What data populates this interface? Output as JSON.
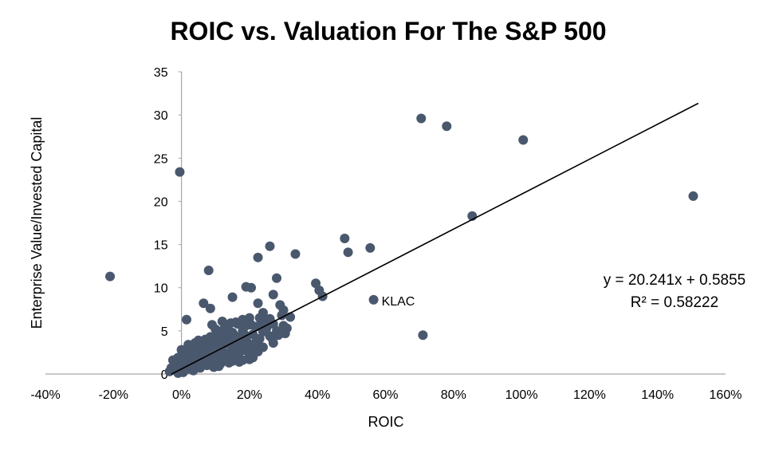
{
  "chart_data": {
    "type": "scatter",
    "title": "ROIC vs. Valuation For The S&P 500",
    "xlabel": "ROIC",
    "ylabel": "Enterprise Value/Invested Capital",
    "xlim": [
      -0.4,
      1.6
    ],
    "ylim": [
      0,
      35
    ],
    "x_tick_labels": [
      "-40%",
      "-20%",
      "0%",
      "20%",
      "40%",
      "60%",
      "80%",
      "100%",
      "120%",
      "140%",
      "160%"
    ],
    "y_tick_labels": [
      "0",
      "5",
      "10",
      "15",
      "20",
      "25",
      "30",
      "35"
    ],
    "grid": false,
    "point_color": "#4a586e",
    "line_color": "#000000",
    "trendline": {
      "slope": 20.241,
      "intercept": 0.5855,
      "x_range": [
        -0.03,
        1.52
      ],
      "equation": "y = 20.241x + 0.5855",
      "r2": "R² = 0.58222"
    },
    "labeled_point": {
      "label": "KLAC",
      "x": 0.565,
      "y": 8.6
    },
    "points": [
      {
        "x": -0.21,
        "y": 11.3
      },
      {
        "x": -0.005,
        "y": 23.4
      },
      {
        "x": 0.015,
        "y": 6.3
      },
      {
        "x": 0.08,
        "y": 12.0
      },
      {
        "x": 0.065,
        "y": 8.2
      },
      {
        "x": 0.085,
        "y": 7.6
      },
      {
        "x": 0.15,
        "y": 8.9
      },
      {
        "x": 0.19,
        "y": 10.1
      },
      {
        "x": 0.205,
        "y": 10.0
      },
      {
        "x": 0.225,
        "y": 13.5
      },
      {
        "x": 0.26,
        "y": 14.8
      },
      {
        "x": 0.27,
        "y": 9.2
      },
      {
        "x": 0.28,
        "y": 11.1
      },
      {
        "x": 0.335,
        "y": 13.9
      },
      {
        "x": 0.395,
        "y": 10.5
      },
      {
        "x": 0.405,
        "y": 9.7
      },
      {
        "x": 0.415,
        "y": 9.0
      },
      {
        "x": 0.48,
        "y": 15.7
      },
      {
        "x": 0.49,
        "y": 14.1
      },
      {
        "x": 0.555,
        "y": 14.6
      },
      {
        "x": 0.565,
        "y": 8.6
      },
      {
        "x": 0.705,
        "y": 29.6
      },
      {
        "x": 0.71,
        "y": 4.5
      },
      {
        "x": 0.78,
        "y": 28.7
      },
      {
        "x": 0.855,
        "y": 18.3
      },
      {
        "x": 1.005,
        "y": 27.1
      },
      {
        "x": 1.505,
        "y": 20.6
      },
      {
        "x": 0.225,
        "y": 8.2
      },
      {
        "x": 0.23,
        "y": 6.5
      },
      {
        "x": 0.24,
        "y": 7.1
      },
      {
        "x": 0.25,
        "y": 6.2
      },
      {
        "x": 0.29,
        "y": 8.0
      },
      {
        "x": 0.3,
        "y": 7.4
      },
      {
        "x": 0.295,
        "y": 6.8
      },
      {
        "x": 0.31,
        "y": 5.3
      },
      {
        "x": 0.32,
        "y": 6.6
      },
      {
        "x": 0.305,
        "y": 4.7
      },
      {
        "x": 0.27,
        "y": 3.6
      },
      {
        "x": 0.265,
        "y": 4.2
      },
      {
        "x": 0.2,
        "y": 6.5
      },
      {
        "x": 0.19,
        "y": 5.6
      },
      {
        "x": 0.165,
        "y": 5.8
      },
      {
        "x": 0.145,
        "y": 5.9
      },
      {
        "x": 0.12,
        "y": 6.1
      },
      {
        "x": 0.1,
        "y": 5.2
      },
      {
        "x": 0.085,
        "y": 4.3
      },
      {
        "x": 0.07,
        "y": 4.0
      },
      {
        "x": 0.05,
        "y": 3.9
      },
      {
        "x": 0.035,
        "y": 3.1
      },
      {
        "x": 0.02,
        "y": 2.6
      },
      {
        "x": 0.01,
        "y": 2.2
      },
      {
        "x": -0.01,
        "y": 1.9
      },
      {
        "x": -0.02,
        "y": 1.1
      },
      {
        "x": -0.03,
        "y": 0.7
      },
      {
        "x": -0.035,
        "y": 0.3
      },
      {
        "x": -0.015,
        "y": 0.4
      },
      {
        "x": 0.0,
        "y": 0.9
      },
      {
        "x": 0.005,
        "y": 1.5
      },
      {
        "x": 0.02,
        "y": 0.6
      },
      {
        "x": 0.03,
        "y": 1.3
      },
      {
        "x": 0.04,
        "y": 0.8
      },
      {
        "x": 0.05,
        "y": 1.8
      },
      {
        "x": 0.06,
        "y": 1.2
      },
      {
        "x": 0.06,
        "y": 2.4
      },
      {
        "x": 0.07,
        "y": 1.6
      },
      {
        "x": 0.08,
        "y": 2.9
      },
      {
        "x": 0.09,
        "y": 1.4
      },
      {
        "x": 0.09,
        "y": 2.1
      },
      {
        "x": 0.1,
        "y": 3.3
      },
      {
        "x": 0.1,
        "y": 1.0
      },
      {
        "x": 0.11,
        "y": 2.6
      },
      {
        "x": 0.11,
        "y": 3.9
      },
      {
        "x": 0.12,
        "y": 1.7
      },
      {
        "x": 0.12,
        "y": 3.0
      },
      {
        "x": 0.13,
        "y": 2.2
      },
      {
        "x": 0.13,
        "y": 4.4
      },
      {
        "x": 0.14,
        "y": 3.5
      },
      {
        "x": 0.14,
        "y": 1.3
      },
      {
        "x": 0.15,
        "y": 2.8
      },
      {
        "x": 0.15,
        "y": 4.8
      },
      {
        "x": 0.16,
        "y": 2.0
      },
      {
        "x": 0.16,
        "y": 3.7
      },
      {
        "x": 0.17,
        "y": 4.2
      },
      {
        "x": 0.17,
        "y": 2.5
      },
      {
        "x": 0.18,
        "y": 3.2
      },
      {
        "x": 0.18,
        "y": 1.6
      },
      {
        "x": 0.18,
        "y": 5.0
      },
      {
        "x": 0.19,
        "y": 2.7
      },
      {
        "x": 0.19,
        "y": 4.0
      },
      {
        "x": 0.2,
        "y": 3.4
      },
      {
        "x": 0.2,
        "y": 2.1
      },
      {
        "x": 0.21,
        "y": 4.6
      },
      {
        "x": 0.21,
        "y": 2.9
      },
      {
        "x": 0.22,
        "y": 3.8
      },
      {
        "x": 0.22,
        "y": 5.5
      },
      {
        "x": 0.23,
        "y": 4.1
      },
      {
        "x": 0.24,
        "y": 4.9
      },
      {
        "x": 0.24,
        "y": 3.1
      },
      {
        "x": 0.25,
        "y": 5.3
      },
      {
        "x": 0.26,
        "y": 4.4
      },
      {
        "x": 0.28,
        "y": 5.0
      },
      {
        "x": 0.27,
        "y": 5.8
      },
      {
        "x": 0.2,
        "y": 1.7
      },
      {
        "x": 0.21,
        "y": 1.9
      },
      {
        "x": 0.17,
        "y": 1.4
      },
      {
        "x": 0.14,
        "y": 2.4
      },
      {
        "x": 0.07,
        "y": 3.4
      },
      {
        "x": 0.045,
        "y": 2.7
      },
      {
        "x": 0.025,
        "y": 1.9
      },
      {
        "x": 0.015,
        "y": 0.9
      },
      {
        "x": 0.035,
        "y": 0.4
      },
      {
        "x": 0.055,
        "y": 0.7
      },
      {
        "x": 0.075,
        "y": 1.0
      },
      {
        "x": 0.095,
        "y": 0.8
      },
      {
        "x": 0.115,
        "y": 1.2
      },
      {
        "x": 0.125,
        "y": 5.2
      },
      {
        "x": 0.135,
        "y": 5.6
      },
      {
        "x": 0.155,
        "y": 4.5
      },
      {
        "x": 0.165,
        "y": 3.0
      },
      {
        "x": 0.175,
        "y": 5.9
      },
      {
        "x": 0.185,
        "y": 4.6
      },
      {
        "x": 0.195,
        "y": 3.6
      },
      {
        "x": 0.205,
        "y": 5.7
      },
      {
        "x": 0.215,
        "y": 3.3
      },
      {
        "x": 0.225,
        "y": 2.6
      },
      {
        "x": 0.235,
        "y": 5.9
      },
      {
        "x": 0.045,
        "y": 1.4
      },
      {
        "x": 0.065,
        "y": 2.0
      },
      {
        "x": 0.085,
        "y": 2.4
      },
      {
        "x": 0.105,
        "y": 2.0
      },
      {
        "x": 0.125,
        "y": 3.6
      },
      {
        "x": 0.145,
        "y": 4.0
      },
      {
        "x": 0.005,
        "y": 0.2
      },
      {
        "x": -0.025,
        "y": 1.6
      },
      {
        "x": 0.0,
        "y": 2.8
      },
      {
        "x": 0.03,
        "y": 2.2
      },
      {
        "x": 0.06,
        "y": 3.0
      },
      {
        "x": 0.09,
        "y": 3.8
      },
      {
        "x": 0.11,
        "y": 4.9
      },
      {
        "x": 0.13,
        "y": 1.9
      },
      {
        "x": 0.15,
        "y": 1.5
      },
      {
        "x": 0.09,
        "y": 5.7
      },
      {
        "x": 0.105,
        "y": 4.5
      },
      {
        "x": 0.075,
        "y": 2.6
      },
      {
        "x": 0.285,
        "y": 4.5
      },
      {
        "x": 0.3,
        "y": 5.6
      },
      {
        "x": 0.26,
        "y": 6.4
      },
      {
        "x": 0.18,
        "y": 6.3
      },
      {
        "x": 0.16,
        "y": 6.0
      },
      {
        "x": 0.11,
        "y": 0.9
      },
      {
        "x": 0.02,
        "y": 3.4
      },
      {
        "x": -0.01,
        "y": 0.1
      },
      {
        "x": 0.04,
        "y": 3.6
      }
    ]
  }
}
